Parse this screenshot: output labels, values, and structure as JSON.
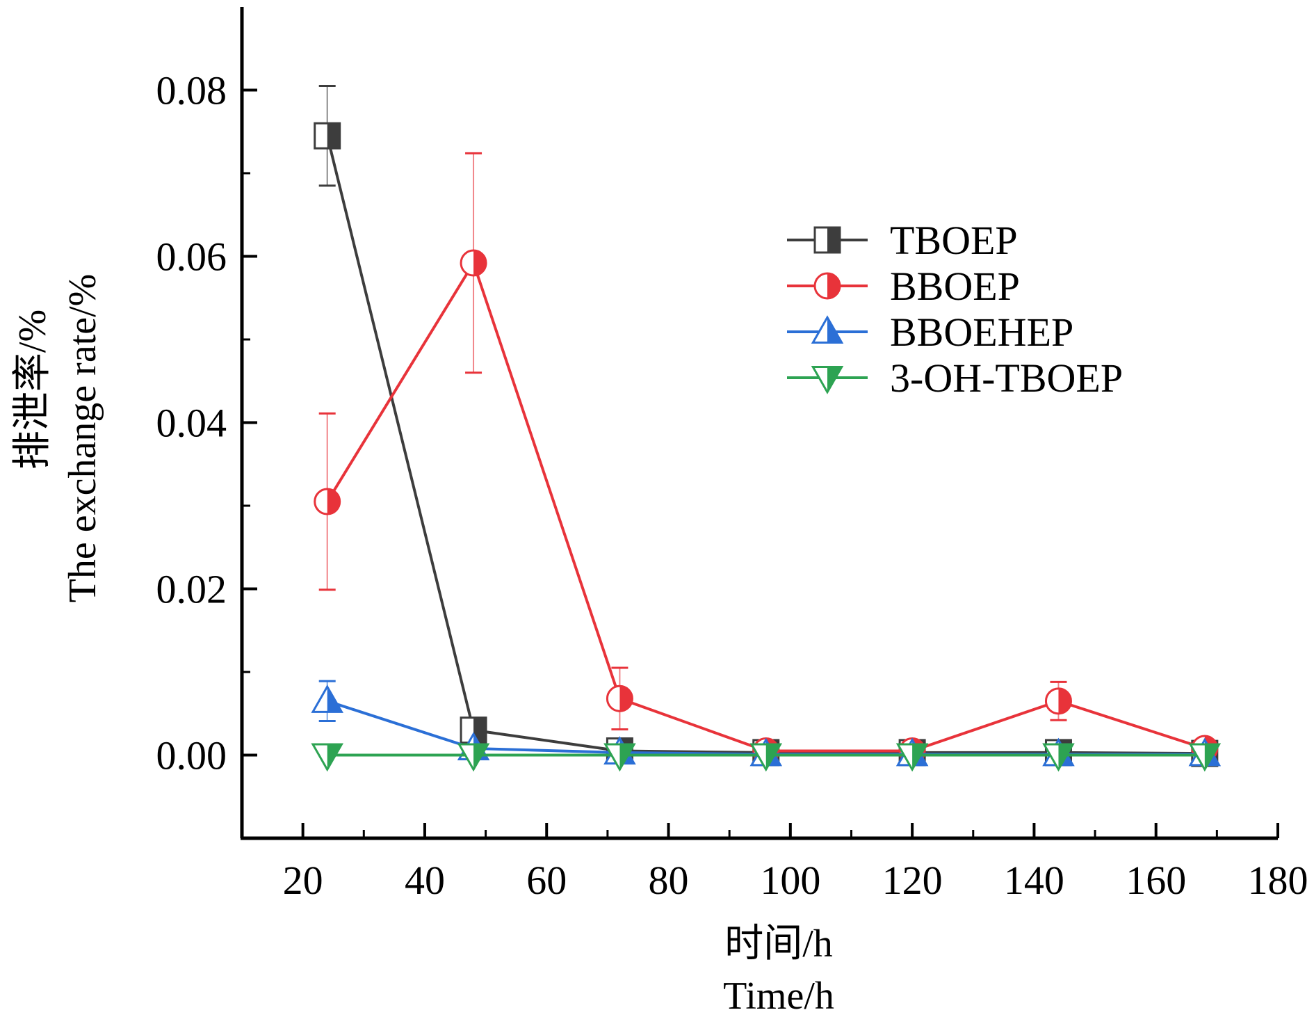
{
  "chart_data": {
    "type": "line",
    "xlabel_lines": [
      "时间/h",
      "Time/h"
    ],
    "ylabel_lines": [
      "排泄率/%",
      "The exchange rate/%"
    ],
    "xlim": [
      10,
      180
    ],
    "ylim": [
      -0.01,
      0.09
    ],
    "x_ticks": [
      20,
      40,
      60,
      80,
      100,
      120,
      140,
      160,
      180
    ],
    "y_ticks": [
      0.0,
      0.02,
      0.04,
      0.06,
      0.08
    ],
    "x_tick_labels": [
      "20",
      "40",
      "60",
      "80",
      "100",
      "120",
      "140",
      "160",
      "180"
    ],
    "y_tick_labels": [
      "0.00",
      "0.02",
      "0.04",
      "0.06",
      "0.08"
    ],
    "x_minor_step": 10,
    "y_minor_step": 0.01,
    "legend_position": "upper-right",
    "x": [
      24,
      48,
      72,
      96,
      120,
      144,
      168
    ],
    "series": [
      {
        "name": "TBOEP",
        "color": "#3d3d3d",
        "marker": "square-half",
        "values": [
          0.0745,
          0.003,
          0.0005,
          0.0003,
          0.0003,
          0.0003,
          0.0002
        ],
        "errors": [
          0.006,
          0.0,
          0.0,
          0.0,
          0.0,
          0.0,
          0.0
        ]
      },
      {
        "name": "BBOEP",
        "color": "#e8333a",
        "marker": "circle-half",
        "values": [
          0.0305,
          0.0592,
          0.0068,
          0.0005,
          0.0005,
          0.0065,
          0.0008
        ],
        "errors": [
          0.0106,
          0.0132,
          0.0037,
          0.0,
          0.0,
          0.0023,
          0.0
        ]
      },
      {
        "name": "BBOEHEP",
        "color": "#2b6fd6",
        "marker": "triangle-up-half",
        "values": [
          0.0065,
          0.0008,
          0.0003,
          0.0001,
          0.0001,
          0.0001,
          0.0001
        ],
        "errors": [
          0.0024,
          0.0,
          0.0,
          0.0,
          0.0,
          0.0,
          0.0
        ]
      },
      {
        "name": "3-OH-TBOEP",
        "color": "#2da352",
        "marker": "triangle-down-half",
        "values": [
          0.0,
          0.0,
          0.0,
          0.0,
          0.0,
          0.0,
          0.0
        ],
        "errors": [
          0.0,
          0.0,
          0.0,
          0.0,
          0.0,
          0.0,
          0.0
        ]
      }
    ]
  }
}
